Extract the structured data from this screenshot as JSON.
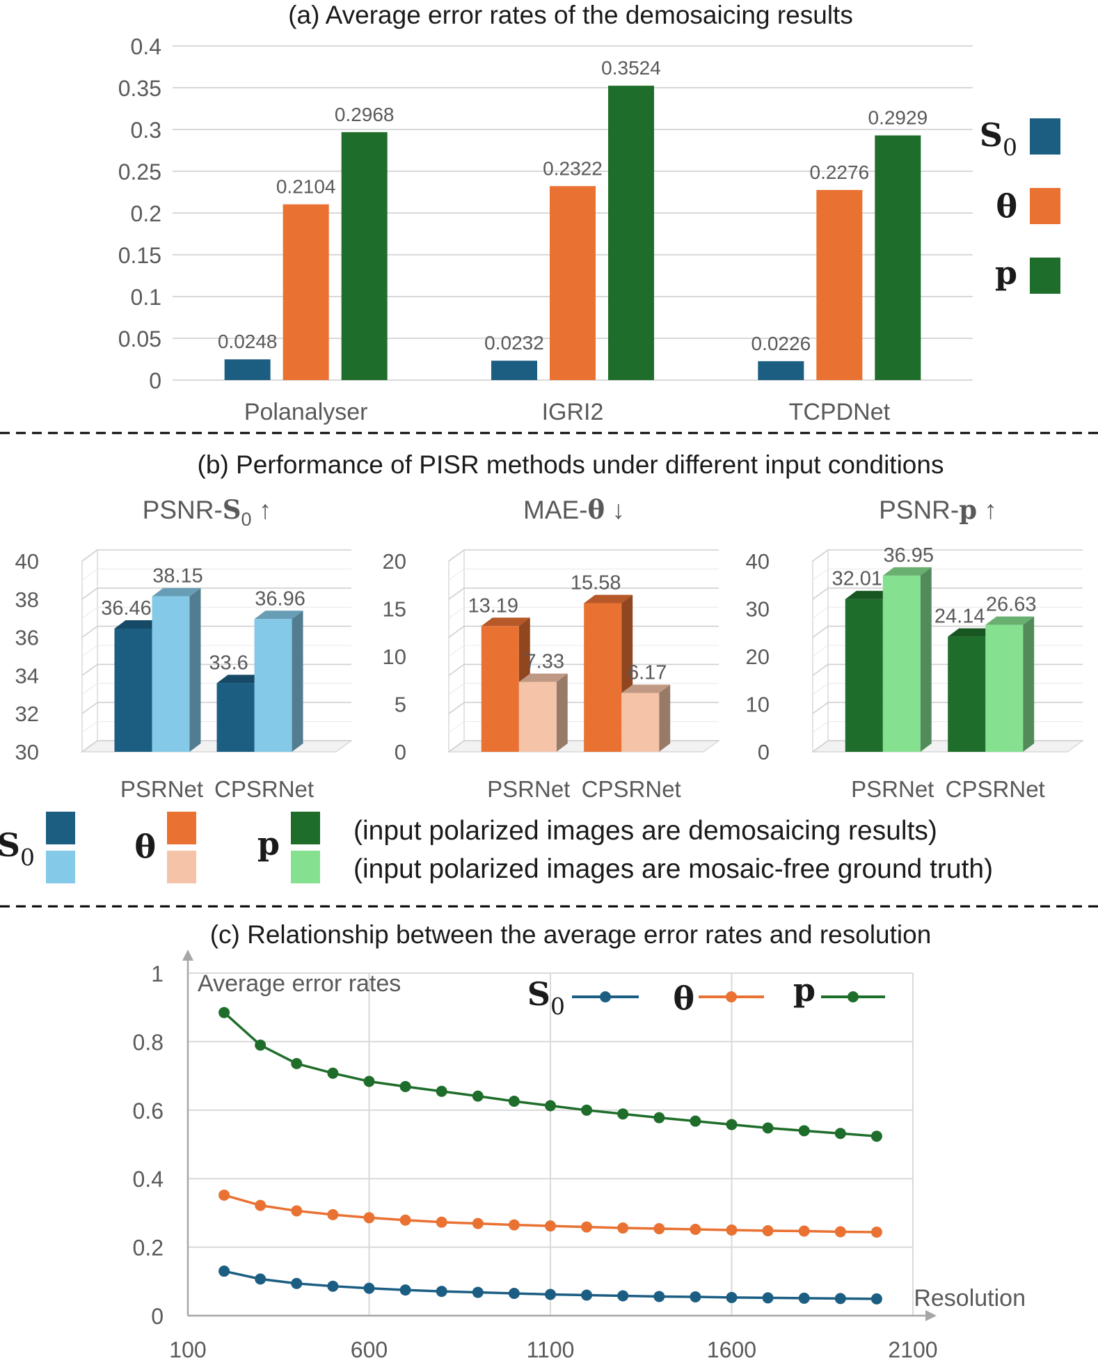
{
  "colors": {
    "s0_dark": "#1b5e82",
    "s0_light": "#84c9e8",
    "theta_dark": "#e97132",
    "theta_light": "#f5c4a8",
    "p_dark": "#1e6d2a",
    "p_light": "#85e090",
    "grid": "#d9d9d9",
    "axis_text": "#595959",
    "divider": "#000000"
  },
  "legend_symbols": [
    "S",
    "0",
    "θ",
    "p"
  ],
  "chart_data": [
    {
      "id": "a",
      "type": "bar",
      "title": "(a) Average error rates of the demosaicing results",
      "categories": [
        "Polanalyser",
        "IGRI2",
        "TCPDNet"
      ],
      "series": [
        {
          "name": "S0",
          "values": [
            0.0248,
            0.0232,
            0.0226
          ],
          "labels": [
            "0.0248",
            "0.0232",
            "0.0226"
          ]
        },
        {
          "name": "θ",
          "values": [
            0.2104,
            0.2322,
            0.2276
          ],
          "labels": [
            "0.2104",
            "0.2322",
            "0.2276"
          ]
        },
        {
          "name": "p",
          "values": [
            0.2968,
            0.3524,
            0.2929
          ],
          "labels": [
            "0.2968",
            "0.3524",
            "0.2929"
          ]
        }
      ],
      "ylim": [
        0,
        0.4
      ],
      "yticks": [
        "0",
        "0.05",
        "0.1",
        "0.15",
        "0.2",
        "0.25",
        "0.3",
        "0.35",
        "0.4"
      ],
      "grid": true,
      "legend_position": "right"
    },
    {
      "id": "b",
      "type": "bar",
      "title": "(b) Performance of PISR methods under different input conditions",
      "subplots": [
        {
          "title_prefix": "PSNR-",
          "title_symbol": "S",
          "title_sub": "0",
          "title_arrow": " ↑",
          "categories": [
            "PSRNet",
            "CPSRNet"
          ],
          "series": [
            {
              "name": "input polarized images are demosaicing results",
              "values": [
                36.46,
                33.6
              ],
              "labels": [
                "36.46",
                "33.6"
              ]
            },
            {
              "name": "input polarized images are mosaic-free ground truth",
              "values": [
                38.15,
                36.96
              ],
              "labels": [
                "38.15",
                "36.96"
              ]
            }
          ],
          "ylim": [
            30,
            40
          ],
          "yticks": [
            "30",
            "32",
            "34",
            "36",
            "38",
            "40"
          ]
        },
        {
          "title_prefix": "MAE-",
          "title_symbol": "θ",
          "title_sub": "",
          "title_arrow": " ↓",
          "categories": [
            "PSRNet",
            "CPSRNet"
          ],
          "series": [
            {
              "name": "input polarized images are demosaicing results",
              "values": [
                13.19,
                15.58
              ],
              "labels": [
                "13.19",
                "15.58"
              ]
            },
            {
              "name": "input polarized images are mosaic-free ground truth",
              "values": [
                7.33,
                6.17
              ],
              "labels": [
                "7.33",
                "6.17"
              ]
            }
          ],
          "ylim": [
            0,
            20
          ],
          "yticks": [
            "0",
            "5",
            "10",
            "15",
            "20"
          ]
        },
        {
          "title_prefix": "PSNR-",
          "title_symbol": "p",
          "title_sub": "",
          "title_arrow": " ↑",
          "categories": [
            "PSRNet",
            "CPSRNet"
          ],
          "series": [
            {
              "name": "input polarized images are demosaicing results",
              "values": [
                32.01,
                24.14
              ],
              "labels": [
                "32.01",
                "24.14"
              ]
            },
            {
              "name": "input polarized images are mosaic-free ground truth",
              "values": [
                36.95,
                26.63
              ],
              "labels": [
                "36.95",
                "26.63"
              ]
            }
          ],
          "ylim": [
            0,
            40
          ],
          "yticks": [
            "0",
            "10",
            "20",
            "30",
            "40"
          ]
        }
      ],
      "legend_text": [
        "(input polarized images are demosaicing results)",
        "(input polarized images are mosaic-free ground truth)"
      ]
    },
    {
      "id": "c",
      "type": "line",
      "title": "(c) Relationship between the average error rates and resolution",
      "xlabel": "Resolution",
      "ylabel": "Average error rates",
      "x": [
        200,
        300,
        400,
        500,
        600,
        700,
        800,
        900,
        1000,
        1100,
        1200,
        1300,
        1400,
        1500,
        1600,
        1700,
        1800,
        1900,
        2000
      ],
      "series": [
        {
          "name": "S0",
          "values": [
            0.13,
            0.107,
            0.094,
            0.086,
            0.08,
            0.075,
            0.071,
            0.068,
            0.065,
            0.062,
            0.06,
            0.058,
            0.056,
            0.055,
            0.053,
            0.052,
            0.051,
            0.05,
            0.049
          ]
        },
        {
          "name": "θ",
          "values": [
            0.352,
            0.322,
            0.306,
            0.295,
            0.286,
            0.279,
            0.273,
            0.269,
            0.265,
            0.262,
            0.259,
            0.256,
            0.254,
            0.252,
            0.25,
            0.248,
            0.247,
            0.245,
            0.244
          ]
        },
        {
          "name": "p",
          "values": [
            0.885,
            0.79,
            0.736,
            0.708,
            0.684,
            0.669,
            0.655,
            0.641,
            0.626,
            0.613,
            0.6,
            0.589,
            0.578,
            0.568,
            0.558,
            0.548,
            0.54,
            0.532,
            0.524
          ]
        }
      ],
      "xlim": [
        100,
        2100
      ],
      "ylim": [
        0,
        1
      ],
      "xticks": [
        "100",
        "600",
        "1100",
        "1600",
        "2100"
      ],
      "yticks": [
        "0",
        "0.2",
        "0.4",
        "0.6",
        "0.8",
        "1"
      ],
      "grid": true,
      "legend_position": "top"
    }
  ]
}
